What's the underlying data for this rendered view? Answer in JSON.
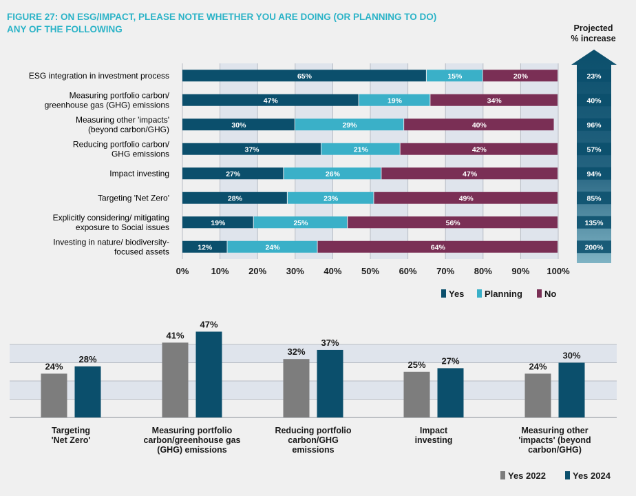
{
  "title_line1": "FIGURE 27: ON ESG/IMPACT, PLEASE NOTE WHETHER YOU ARE DOING (OR PLANNING TO DO)",
  "title_line2": "ANY OF THE FOLLOWING",
  "projected_header_line1": "Projected",
  "projected_header_line2": "% increase",
  "colors": {
    "yes": "#0b4f6c",
    "planning": "#3ab0c8",
    "no": "#7a2f55",
    "yes2022": "#7d7d7d",
    "yes2024": "#0b4f6c",
    "arrow": "#0b4f6c",
    "title": "#2bb3c7"
  },
  "chart_data": [
    {
      "type": "bar",
      "orientation": "horizontal",
      "stacked": true,
      "categories": [
        [
          "ESG integration in investment process"
        ],
        [
          "Measuring portfolio carbon/",
          "greenhouse gas (GHG) emissions"
        ],
        [
          "Measuring other 'impacts'",
          "(beyond carbon/GHG)"
        ],
        [
          "Reducing portfolio carbon/",
          "GHG emissions"
        ],
        [
          "Impact investing"
        ],
        [
          "Targeting 'Net Zero'"
        ],
        [
          "Explicitly considering/ mitigating",
          "exposure to Social issues"
        ],
        [
          "Investing in nature/ biodiversity-",
          "focused assets"
        ]
      ],
      "series": [
        {
          "name": "Yes",
          "values": [
            65,
            47,
            30,
            37,
            27,
            28,
            19,
            12
          ]
        },
        {
          "name": "Planning",
          "values": [
            15,
            19,
            29,
            21,
            26,
            23,
            25,
            24
          ]
        },
        {
          "name": "No",
          "values": [
            20,
            34,
            40,
            42,
            47,
            49,
            56,
            64
          ]
        }
      ],
      "projected_increase": [
        "23%",
        "40%",
        "96%",
        "57%",
        "94%",
        "85%",
        "135%",
        "200%"
      ],
      "xlim": [
        0,
        100
      ],
      "xticks": [
        "0%",
        "10%",
        "20%",
        "30%",
        "40%",
        "50%",
        "60%",
        "70%",
        "80%",
        "90%",
        "100%"
      ],
      "legend": [
        "Yes",
        "Planning",
        "No"
      ]
    },
    {
      "type": "bar",
      "categories": [
        [
          "Targeting",
          "'Net Zero'"
        ],
        [
          "Measuring portfolio",
          "carbon/greenhouse gas",
          "(GHG) emissions"
        ],
        [
          "Reducing portfolio",
          "carbon/GHG",
          "emissions"
        ],
        [
          "Impact",
          "investing"
        ],
        [
          "Measuring other",
          "'impacts' (beyond",
          "carbon/GHG)"
        ]
      ],
      "series": [
        {
          "name": "Yes 2022",
          "values": [
            24,
            41,
            32,
            25,
            24
          ]
        },
        {
          "name": "Yes 2024",
          "values": [
            28,
            47,
            37,
            27,
            30
          ]
        }
      ],
      "legend": [
        "Yes 2022",
        "Yes 2024"
      ]
    }
  ]
}
